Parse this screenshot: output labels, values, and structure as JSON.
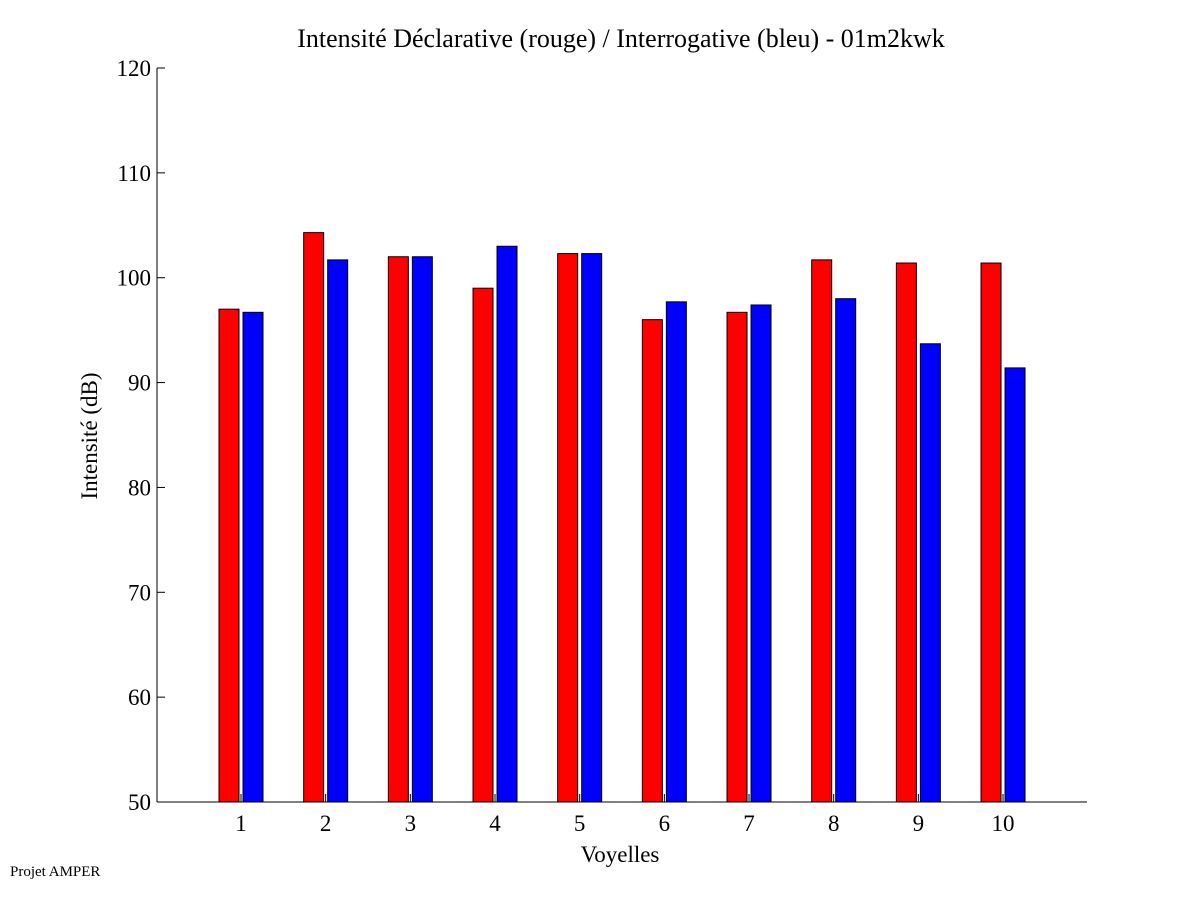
{
  "footer_text": "Projet AMPER",
  "colors": {
    "series_1": "#ff0000",
    "series_2": "#0000ff",
    "axis": "#000000",
    "background": "#ffffff"
  },
  "chart_data": {
    "type": "bar",
    "title": "Intensité Déclarative (rouge) / Interrogative (bleu) - 01m2kwk",
    "xlabel": "Voyelles",
    "ylabel": "Intensité (dB)",
    "categories": [
      "1",
      "2",
      "3",
      "4",
      "5",
      "6",
      "7",
      "8",
      "9",
      "10"
    ],
    "series": [
      {
        "values": [
          97.0,
          104.3,
          102.0,
          99.0,
          102.3,
          96.0,
          96.7,
          101.7,
          101.4,
          101.4
        ],
        "color": "#ff0000"
      },
      {
        "values": [
          96.7,
          101.7,
          102.0,
          103.0,
          102.3,
          97.7,
          97.4,
          98.0,
          93.7,
          91.4
        ],
        "color": "#0000ff"
      }
    ],
    "ylim": [
      50,
      120
    ],
    "yticks": [
      "50",
      "60",
      "70",
      "80",
      "90",
      "100",
      "110",
      "120"
    ],
    "grid": false,
    "legend": "none"
  }
}
